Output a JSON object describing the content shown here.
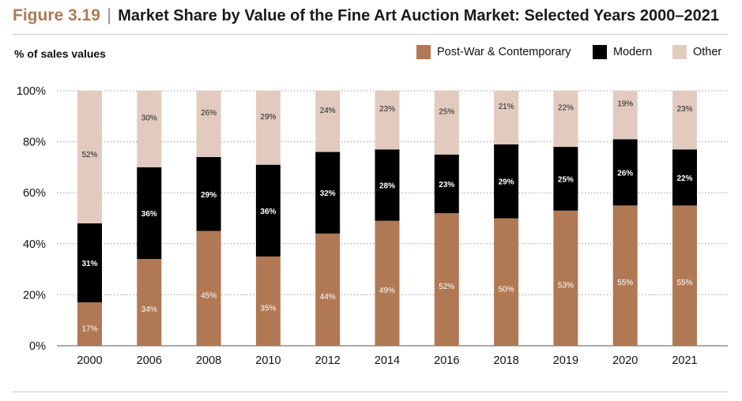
{
  "header": {
    "figure_number": "Figure 3.19",
    "separator": "|",
    "title": "Market Share by Value of the Fine Art Auction Market: Selected Years 2000–2021"
  },
  "chart_data": {
    "type": "bar",
    "stacked": true,
    "ylabel": "% of sales values",
    "xlabel": "",
    "ylim": [
      0,
      100
    ],
    "yticks": [
      "0%",
      "20%",
      "40%",
      "60%",
      "80%",
      "100%"
    ],
    "grid": "horizontal dotted",
    "legend_position": "top-right",
    "categories": [
      "2000",
      "2006",
      "2008",
      "2010",
      "2012",
      "2014",
      "2016",
      "2018",
      "2019",
      "2020",
      "2021"
    ],
    "series": [
      {
        "name": "Post-War & Contemporary",
        "color": "#b07954",
        "label_color": "#ffffff",
        "values": [
          17,
          34,
          45,
          35,
          44,
          49,
          52,
          50,
          53,
          55,
          55
        ]
      },
      {
        "name": "Modern",
        "color": "#000000",
        "label_color": "#ffffff",
        "values": [
          31,
          36,
          29,
          36,
          32,
          28,
          23,
          29,
          25,
          26,
          22
        ]
      },
      {
        "name": "Other",
        "color": "#e2cbbe",
        "label_color": "#222222",
        "values": [
          52,
          30,
          26,
          29,
          24,
          23,
          25,
          21,
          22,
          19,
          23
        ]
      }
    ]
  }
}
